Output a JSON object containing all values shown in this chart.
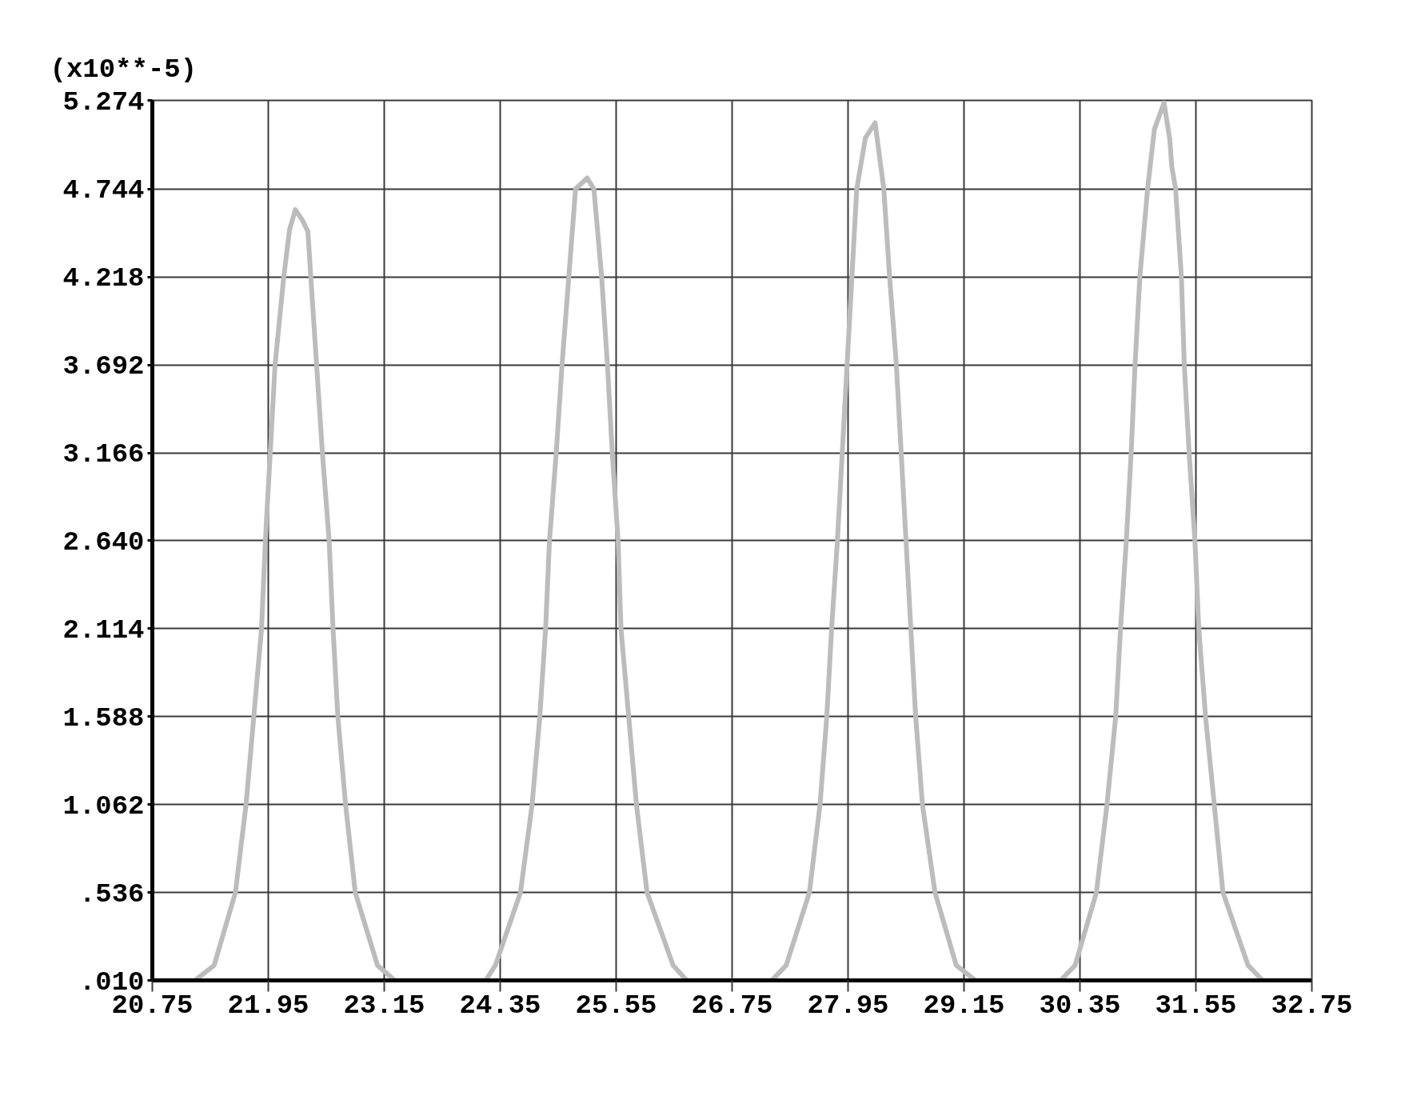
{
  "chart_data": {
    "type": "line",
    "ylabel": "(x10**-5)",
    "xlim": [
      20.75,
      32.75
    ],
    "ylim": [
      0.01,
      5.274
    ],
    "xticks": [
      20.75,
      21.95,
      23.15,
      24.35,
      25.55,
      26.75,
      27.95,
      29.15,
      30.35,
      31.55,
      32.75
    ],
    "yticks": [
      {
        "value": 0.01,
        "label": ".010"
      },
      {
        "value": 0.536,
        "label": ".536"
      },
      1.062,
      1.588,
      2.114,
      {
        "value": 2.64,
        "label": "2.640"
      },
      3.166,
      3.692,
      4.218,
      4.744,
      5.274
    ],
    "grid": true,
    "series": [
      {
        "color": "#bcbcbc",
        "x": [
          20.75,
          21.19,
          21.39,
          21.61,
          21.72,
          21.8,
          21.88,
          21.92,
          21.97,
          22.02,
          22.11,
          22.17,
          22.23,
          22.3,
          22.36,
          22.39,
          22.45,
          22.51,
          22.58,
          22.62,
          22.67,
          22.75,
          22.85,
          23.08,
          23.26,
          24.2,
          24.3,
          24.56,
          24.68,
          24.76,
          24.82,
          24.86,
          24.93,
          24.99,
          25.06,
          25.13,
          25.25,
          25.32,
          25.4,
          25.46,
          25.51,
          25.57,
          25.6,
          25.68,
          25.76,
          25.87,
          26.14,
          26.28,
          27.16,
          27.31,
          27.55,
          27.66,
          27.73,
          27.78,
          27.84,
          27.89,
          27.94,
          27.99,
          28.04,
          28.13,
          28.23,
          28.32,
          28.38,
          28.45,
          28.5,
          28.55,
          28.6,
          28.65,
          28.72,
          28.85,
          29.07,
          29.27,
          30.15,
          30.3,
          30.52,
          30.63,
          30.72,
          30.77,
          30.83,
          30.88,
          30.92,
          30.97,
          31.05,
          31.12,
          31.22,
          31.28,
          31.3,
          31.34,
          31.4,
          31.43,
          31.48,
          31.54,
          31.58,
          31.65,
          31.74,
          31.83,
          32.09,
          32.24,
          32.75
        ],
        "values": [
          0.01,
          0.01,
          0.1,
          0.536,
          1.062,
          1.588,
          2.114,
          2.64,
          3.166,
          3.692,
          4.218,
          4.5,
          4.62,
          4.56,
          4.49,
          4.218,
          3.692,
          3.166,
          2.64,
          2.114,
          1.588,
          1.062,
          0.536,
          0.1,
          0.01,
          0.01,
          0.1,
          0.536,
          1.062,
          1.588,
          2.114,
          2.64,
          3.166,
          3.692,
          4.218,
          4.744,
          4.81,
          4.744,
          4.218,
          3.692,
          3.166,
          2.64,
          2.114,
          1.588,
          1.062,
          0.536,
          0.1,
          0.01,
          0.01,
          0.1,
          0.536,
          1.062,
          1.588,
          2.114,
          2.64,
          3.166,
          3.692,
          4.218,
          4.744,
          5.05,
          5.14,
          4.744,
          4.218,
          3.692,
          3.166,
          2.64,
          2.114,
          1.588,
          1.062,
          0.536,
          0.1,
          0.01,
          0.01,
          0.1,
          0.536,
          1.062,
          1.588,
          2.114,
          2.64,
          3.166,
          3.692,
          4.218,
          4.744,
          5.1,
          5.26,
          5.04,
          4.88,
          4.744,
          4.218,
          3.692,
          3.166,
          2.64,
          2.114,
          1.588,
          1.062,
          0.536,
          0.1,
          0.01,
          0.01
        ]
      }
    ]
  }
}
